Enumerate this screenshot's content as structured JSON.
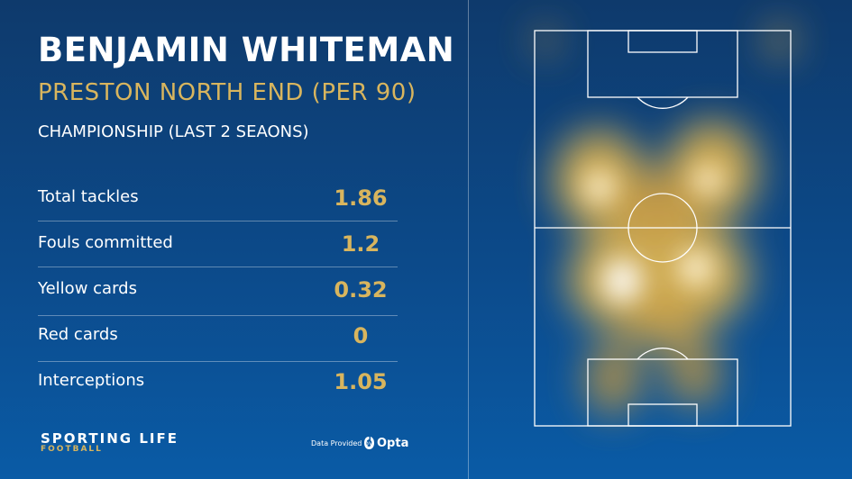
{
  "header": {
    "title": "BENJAMIN WHITEMAN",
    "subtitle": "PRESTON NORTH END (PER 90)",
    "competition": "CHAMPIONSHIP (LAST 2 SEAONS)"
  },
  "stats": {
    "rows": [
      [
        "Total tackles",
        "1.86"
      ],
      [
        "Fouls committed",
        "1.2"
      ],
      [
        "Yellow cards",
        "0.32"
      ],
      [
        "Red cards",
        "0"
      ],
      [
        "Interceptions",
        "1.05"
      ]
    ]
  },
  "footer": {
    "brand": "SPORTING LIFE",
    "brand_sub": "FOOTBALL",
    "credit": "Data Provided by",
    "provider": "Opta"
  }
}
